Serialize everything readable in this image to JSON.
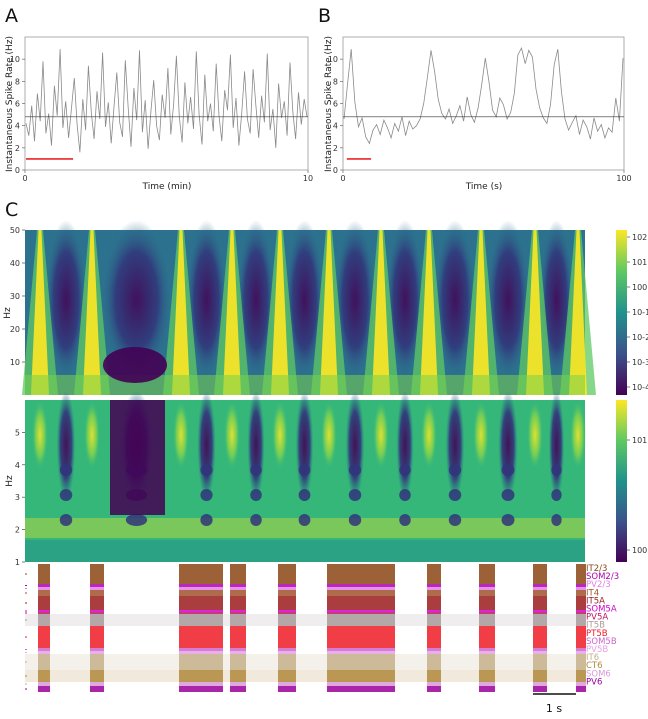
{
  "panels": {
    "a": "A",
    "b": "B",
    "c": "C"
  },
  "chart_data": [
    {
      "panel": "A",
      "type": "line",
      "xlabel": "Time (min)",
      "ylabel": "Instantaneous Spike Rate (Hz)",
      "xlim": [
        0,
        10
      ],
      "ylim": [
        0,
        12
      ],
      "xticks": [
        "0",
        "10"
      ],
      "yticks": [
        "0",
        "2",
        "4",
        "6",
        "8",
        "10"
      ],
      "reference_line_y": 4.8,
      "scale_bar_x": [
        0,
        1.7
      ],
      "scale_bar_y": 1.0,
      "series": [
        {
          "values": [
            4.2,
            3.1,
            5.8,
            2.6,
            6.9,
            4.4,
            9.8,
            3.3,
            5.1,
            2.2,
            7.6,
            4.9,
            10.9,
            3.8,
            6.2,
            2.9,
            5.5,
            8.3,
            4.1,
            1.6,
            6.4,
            3.6,
            9.4,
            5.2,
            2.8,
            7.1,
            4.6,
            10.6,
            3.9,
            6.1,
            2.4,
            5.7,
            8.8,
            4.3,
            3.0,
            9.9,
            5.6,
            2.1,
            7.4,
            4.5,
            10.8,
            3.4,
            6.3,
            1.9,
            5.3,
            8.1,
            4.0,
            2.7,
            6.8,
            4.7,
            9.2,
            3.2,
            5.9,
            10.3,
            4.8,
            2.5,
            7.9,
            4.2,
            6.6,
            3.7,
            10.7,
            5.0,
            2.3,
            8.6,
            4.4,
            6.0,
            3.5,
            9.6,
            4.9,
            2.6,
            7.2,
            5.4,
            10.4,
            3.8,
            6.5,
            2.2,
            5.1,
            8.9,
            4.6,
            3.3,
            9.1,
            5.8,
            2.9,
            6.7,
            4.3,
            10.5,
            3.6,
            5.5,
            2.0,
            7.8,
            4.7,
            6.2,
            3.1,
            9.7,
            5.3,
            2.8,
            7.0,
            4.1,
            6.4,
            4.8
          ]
        }
      ]
    },
    {
      "panel": "B",
      "type": "line",
      "xlabel": "Time (s)",
      "ylabel": "Instantaneous Spike Rate (Hz)",
      "xlim": [
        0,
        100
      ],
      "ylim": [
        0,
        12
      ],
      "xticks": [
        "0",
        "100"
      ],
      "yticks": [
        "0",
        "2",
        "4",
        "6",
        "8",
        "10"
      ],
      "reference_line_y": 4.8,
      "scale_bar_x": [
        1,
        10
      ],
      "scale_bar_y": 1.0,
      "series": [
        {
          "values": [
            4.6,
            7.8,
            10.9,
            6.1,
            3.9,
            4.7,
            3.0,
            2.4,
            3.6,
            4.1,
            3.2,
            4.5,
            3.8,
            2.9,
            4.2,
            3.5,
            4.8,
            3.1,
            4.4,
            3.7,
            4.0,
            4.6,
            6.0,
            8.3,
            10.8,
            8.9,
            6.4,
            5.1,
            4.6,
            5.5,
            4.2,
            4.9,
            5.8,
            4.4,
            6.6,
            5.0,
            4.3,
            5.6,
            7.7,
            10.1,
            8.0,
            5.4,
            4.8,
            6.5,
            5.9,
            4.6,
            5.2,
            6.9,
            10.4,
            11.0,
            9.6,
            10.8,
            10.2,
            7.3,
            5.6,
            4.7,
            4.2,
            5.9,
            9.5,
            10.9,
            7.1,
            4.6,
            3.6,
            4.3,
            4.9,
            3.2,
            4.5,
            3.9,
            2.8,
            4.7,
            3.5,
            4.1,
            2.9,
            3.8,
            3.4,
            6.5,
            4.4,
            10.1
          ]
        }
      ]
    },
    {
      "panel": "C-top",
      "type": "heatmap",
      "ylabel": "Hz",
      "ylim": [
        0,
        50
      ],
      "yticks": [
        "10",
        "20",
        "30",
        "40",
        "50"
      ],
      "colormap": "viridis",
      "color_scale": "log",
      "colorbar_ticks": [
        "10^2",
        "10^1",
        "10^0",
        "10^-1",
        "10^-2",
        "10^-3",
        "10^-4"
      ]
    },
    {
      "panel": "C-middle",
      "type": "heatmap",
      "ylabel": "Hz",
      "ylim": [
        1,
        6
      ],
      "yticks": [
        "1",
        "2",
        "3",
        "4",
        "5"
      ],
      "colormap": "viridis",
      "color_scale": "log",
      "colorbar_ticks": [
        "10^1",
        "10^0"
      ]
    },
    {
      "panel": "C-bottom",
      "type": "scatter",
      "kind": "spike-raster",
      "legend_position": "right",
      "populations": [
        {
          "name": "IT2/3",
          "color": "#8b4513"
        },
        {
          "name": "SOM2/3",
          "color": "#b000b0"
        },
        {
          "name": "PV2/3",
          "color": "#e27ee6"
        },
        {
          "name": "IT4",
          "color": "#a0522d"
        },
        {
          "name": "IT5A",
          "color": "#9b1c1c"
        },
        {
          "name": "SOM5A",
          "color": "#d400d4"
        },
        {
          "name": "PV5A",
          "color": "#c01560"
        },
        {
          "name": "IT5B",
          "color": "#a89a9a"
        },
        {
          "name": "PT5B",
          "color": "#ee1b24"
        },
        {
          "name": "SOM5B",
          "color": "#cc66cc"
        },
        {
          "name": "PV5B",
          "color": "#e8a0e8"
        },
        {
          "name": "IT6",
          "color": "#c4b08a"
        },
        {
          "name": "CT6",
          "color": "#b08a3c"
        },
        {
          "name": "SOM6",
          "color": "#d99ad9"
        },
        {
          "name": "PV6",
          "color": "#9a009a"
        }
      ],
      "scale_bar_label": "1 s"
    }
  ]
}
